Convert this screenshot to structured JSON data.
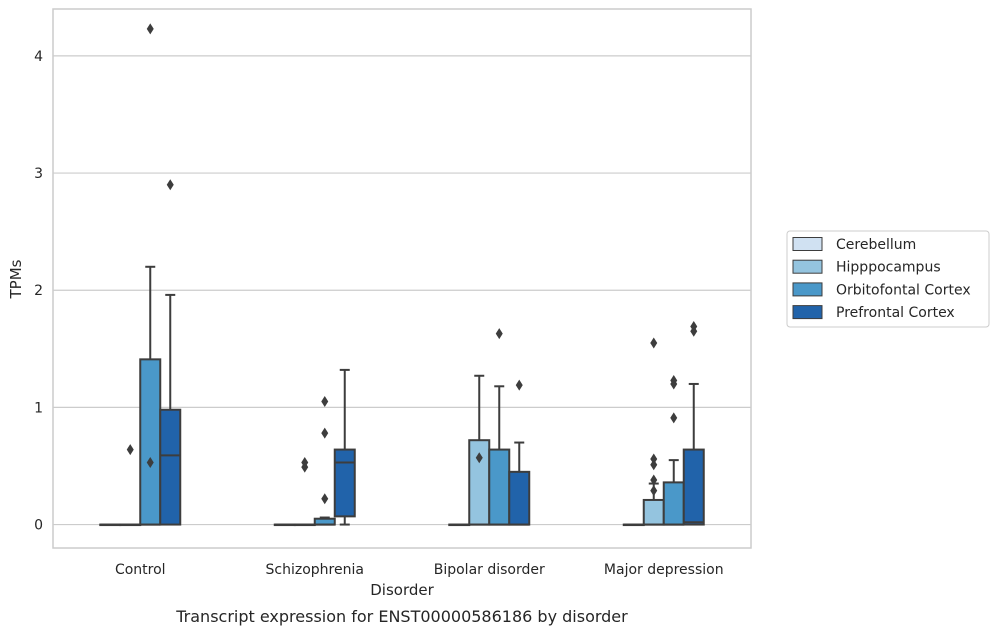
{
  "chart_data": {
    "type": "box",
    "title": "",
    "caption": "Transcript expression for ENST00000586186 by disorder",
    "xlabel": "Disorder",
    "ylabel": "TPMs",
    "ylim": [
      -0.2,
      4.4
    ],
    "yticks": [
      0,
      1,
      2,
      3,
      4
    ],
    "grid": "horizontal",
    "legend_position": "right",
    "categories": [
      "Control",
      "Schizophrenia",
      "Bipolar disorder",
      "Major depression"
    ],
    "series": [
      {
        "name": "Cerebellum",
        "color": "#d0e1f2",
        "boxes": [
          {
            "q1": 0,
            "median": 0,
            "q3": 0,
            "whisker_low": 0,
            "whisker_high": 0,
            "outliers": []
          },
          {
            "q1": 0,
            "median": 0,
            "q3": 0,
            "whisker_low": 0,
            "whisker_high": 0,
            "outliers": []
          },
          {
            "q1": 0,
            "median": 0,
            "q3": 0,
            "whisker_low": 0,
            "whisker_high": 0,
            "outliers": []
          },
          {
            "q1": 0,
            "median": 0,
            "q3": 0,
            "whisker_low": 0,
            "whisker_high": 0,
            "outliers": []
          }
        ]
      },
      {
        "name": "Hipppocampus",
        "color": "#94c4df",
        "boxes": [
          {
            "q1": 0,
            "median": 0,
            "q3": 0,
            "whisker_low": 0,
            "whisker_high": 0,
            "outliers": [
              0.64
            ]
          },
          {
            "q1": 0,
            "median": 0,
            "q3": 0,
            "whisker_low": 0,
            "whisker_high": 0,
            "outliers": [
              0.49,
              0.53
            ]
          },
          {
            "q1": 0,
            "median": 0,
            "q3": 0.72,
            "whisker_low": 0,
            "whisker_high": 1.27,
            "outliers": [
              0.57
            ]
          },
          {
            "q1": 0,
            "median": 0,
            "q3": 0.21,
            "whisker_low": 0,
            "whisker_high": 0.35,
            "outliers": [
              0.29,
              0.38,
              0.51,
              0.56,
              1.55
            ]
          }
        ]
      },
      {
        "name": "Orbitofontal Cortex",
        "color": "#4a98c9",
        "boxes": [
          {
            "q1": 0,
            "median": 0,
            "q3": 1.41,
            "whisker_low": 0,
            "whisker_high": 2.2,
            "outliers": [
              0.53,
              4.23
            ]
          },
          {
            "q1": 0,
            "median": 0,
            "q3": 0.05,
            "whisker_low": 0,
            "whisker_high": 0.06,
            "outliers": [
              0.22,
              0.78,
              1.05
            ]
          },
          {
            "q1": 0,
            "median": 0,
            "q3": 0.64,
            "whisker_low": 0,
            "whisker_high": 1.18,
            "outliers": [
              1.63
            ]
          },
          {
            "q1": 0,
            "median": 0,
            "q3": 0.36,
            "whisker_low": 0,
            "whisker_high": 0.55,
            "outliers": [
              0.91,
              1.2,
              1.23
            ]
          }
        ]
      },
      {
        "name": "Prefrontal Cortex",
        "color": "#2163aa",
        "boxes": [
          {
            "q1": 0,
            "median": 0.59,
            "q3": 0.98,
            "whisker_low": 0,
            "whisker_high": 1.96,
            "outliers": [
              2.9
            ]
          },
          {
            "q1": 0.07,
            "median": 0.53,
            "q3": 0.64,
            "whisker_low": 0,
            "whisker_high": 1.32,
            "outliers": []
          },
          {
            "q1": 0,
            "median": 0,
            "q3": 0.45,
            "whisker_low": 0,
            "whisker_high": 0.7,
            "outliers": [
              1.19
            ]
          },
          {
            "q1": 0,
            "median": 0.02,
            "q3": 0.64,
            "whisker_low": 0,
            "whisker_high": 1.2,
            "outliers": [
              1.65,
              1.69
            ]
          }
        ]
      }
    ]
  }
}
